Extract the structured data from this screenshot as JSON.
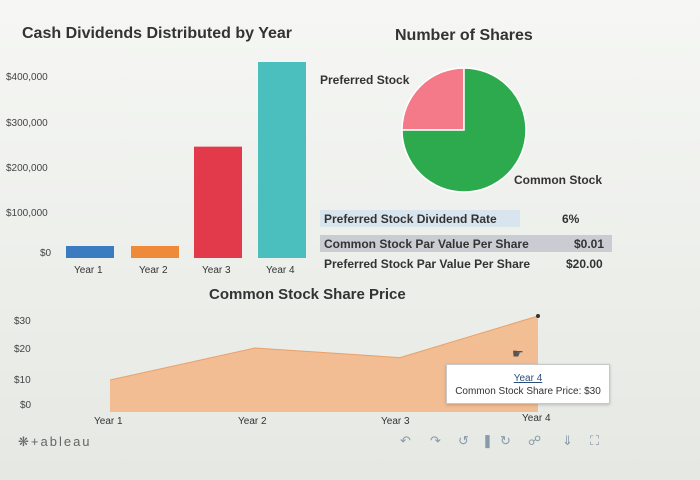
{
  "dashboard": {
    "bar_title": "Cash Dividends Distributed by Year",
    "pie_title": "Number of Shares",
    "area_title": "Common Stock Share Price"
  },
  "info_table": {
    "rows": [
      {
        "label": "Preferred Stock Dividend Rate",
        "value": "6%"
      },
      {
        "label": "Common Stock Par Value Per Share",
        "value": "$0.01"
      },
      {
        "label": "Preferred Stock Par Value Per Share",
        "value": "$20.00"
      }
    ]
  },
  "tooltip": {
    "title": "Year 4",
    "text": "Common Stock Share Price: $30"
  },
  "footer": {
    "logo_text": "+ableau"
  },
  "colors": {
    "year1": "#3b7bbf",
    "year2": "#ee8a3a",
    "year3": "#e23a4a",
    "year4": "#4bbfbd",
    "preferred": "#f47a8a",
    "common": "#2daa4e",
    "area": "#f3b584"
  },
  "chart_data": [
    {
      "type": "bar",
      "title": "Cash Dividends Distributed by Year",
      "categories": [
        "Year 1",
        "Year 2",
        "Year 3",
        "Year 4"
      ],
      "values": [
        12000,
        18000,
        250000,
        440000
      ],
      "y_tick_labels": [
        "$400,000",
        "$300,000",
        "$200,000",
        "$100,000",
        "$0"
      ],
      "y_ticks": [
        400000,
        300000,
        200000,
        100000,
        0
      ],
      "ylim": [
        0,
        440000
      ],
      "xlabel": "",
      "ylabel": "",
      "grid": false
    },
    {
      "type": "pie",
      "title": "Number of Shares",
      "slices": [
        {
          "name": "Preferred Stock",
          "value": 25
        },
        {
          "name": "Common Stock",
          "value": 75
        }
      ]
    },
    {
      "type": "area",
      "title": "Common Stock Share Price",
      "categories": [
        "Year 1",
        "Year 2",
        "Year 3",
        "Year 4"
      ],
      "values": [
        10,
        20,
        17,
        30
      ],
      "y_tick_labels": [
        "$30",
        "$20",
        "$10",
        "$0"
      ],
      "y_ticks": [
        30,
        20,
        10,
        0
      ],
      "ylim": [
        0,
        30
      ],
      "xlabel": "",
      "ylabel": "",
      "grid": false
    }
  ]
}
